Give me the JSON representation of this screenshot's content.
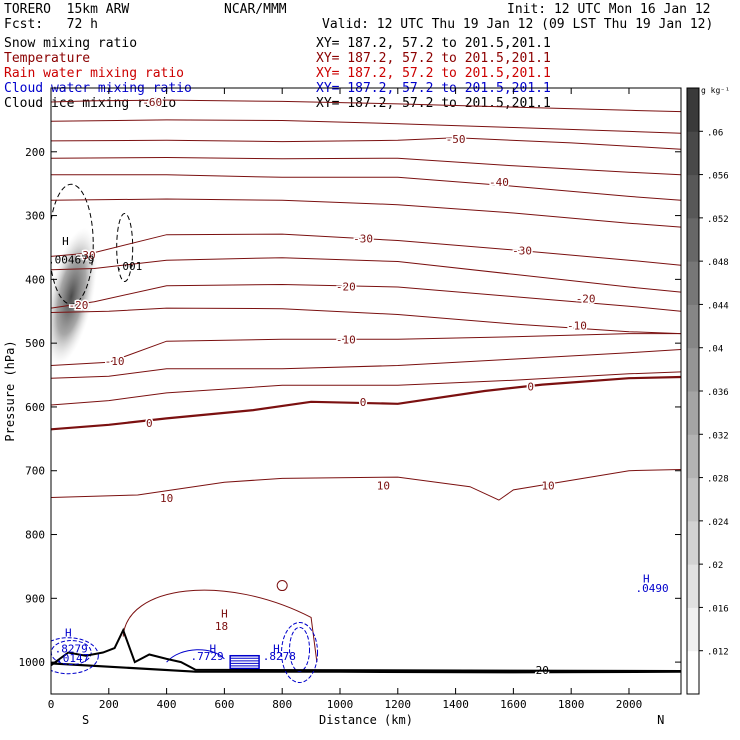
{
  "header": {
    "model": "TORERO  15km ARW",
    "center": "NCAR/MMM",
    "init": "Init: 12 UTC Mon 16 Jan 12",
    "fcst": "Fcst:   72 h",
    "valid": "Valid: 12 UTC Thu 19 Jan 12 (09 LST Thu 19 Jan 12)",
    "fields": [
      {
        "label": "Snow mixing ratio",
        "color": "#000000"
      },
      {
        "label": "Temperature",
        "color": "#8b0000"
      },
      {
        "label": "Rain water mixing ratio",
        "color": "#cc0000"
      },
      {
        "label": "Cloud water mixing ratio",
        "color": "#0000cc"
      },
      {
        "label": "Cloud ice mixing ratio",
        "color": "#000000"
      }
    ],
    "cross_section": "XY= 187.2, 57.2 to 201.5,201.1"
  },
  "chart_data": {
    "type": "heatmap",
    "xlabel": "Distance (km)",
    "ylabel": "Pressure (hPa)",
    "xlim": [
      0,
      2180
    ],
    "ylim": [
      1050,
      100
    ],
    "x_ticks": [
      0,
      200,
      400,
      600,
      800,
      1000,
      1200,
      1400,
      1600,
      1800,
      2000
    ],
    "y_ticks": [
      200,
      300,
      400,
      500,
      600,
      700,
      800,
      900,
      1000
    ],
    "x_end_labels": {
      "left": "S",
      "right": "N"
    },
    "colorbar": {
      "unit": "g kg⁻¹",
      "ticks": [
        0.012,
        0.016,
        0.02,
        0.024,
        0.028,
        0.032,
        0.036,
        0.04,
        0.044,
        0.048,
        0.052,
        0.056,
        0.06
      ],
      "tick_labels": [
        ".012",
        ".016",
        ".02",
        ".024",
        ".028",
        ".032",
        ".036",
        ".04",
        ".044",
        ".048",
        ".052",
        ".056",
        ".06"
      ]
    },
    "temperature_contours": [
      {
        "value": -60,
        "points": [
          [
            0,
            122
          ],
          [
            150,
            120
          ],
          [
            400,
            119
          ],
          [
            800,
            121
          ],
          [
            1200,
            125
          ],
          [
            1600,
            130
          ],
          [
            2000,
            135
          ],
          [
            2180,
            137
          ]
        ],
        "labels": [
          {
            "text": "-60",
            "x": 350,
            "p": 122
          }
        ]
      },
      {
        "value": -55,
        "points": [
          [
            0,
            152
          ],
          [
            400,
            150
          ],
          [
            800,
            151
          ],
          [
            1200,
            156
          ],
          [
            1600,
            162
          ],
          [
            2000,
            168
          ],
          [
            2180,
            171
          ]
        ]
      },
      {
        "value": -50,
        "points": [
          [
            0,
            183
          ],
          [
            400,
            182
          ],
          [
            800,
            184
          ],
          [
            1200,
            182
          ],
          [
            1400,
            178
          ],
          [
            1800,
            186
          ],
          [
            2180,
            196
          ]
        ],
        "labels": [
          {
            "text": "-50",
            "x": 1400,
            "p": 180
          }
        ]
      },
      {
        "value": -45,
        "points": [
          [
            0,
            210
          ],
          [
            400,
            209
          ],
          [
            800,
            211
          ],
          [
            1200,
            210
          ],
          [
            1600,
            222
          ],
          [
            2000,
            232
          ],
          [
            2180,
            236
          ]
        ]
      },
      {
        "value": -40,
        "points": [
          [
            0,
            236
          ],
          [
            400,
            236
          ],
          [
            800,
            240
          ],
          [
            1200,
            240
          ],
          [
            1600,
            254
          ],
          [
            2000,
            270
          ],
          [
            2180,
            276
          ]
        ],
        "labels": [
          {
            "text": "-40",
            "x": 1550,
            "p": 247
          }
        ]
      },
      {
        "value": -35,
        "points": [
          [
            0,
            276
          ],
          [
            400,
            274
          ],
          [
            800,
            276
          ],
          [
            1200,
            283
          ],
          [
            1600,
            296
          ],
          [
            2000,
            312
          ],
          [
            2180,
            318
          ]
        ]
      },
      {
        "value": -30,
        "points": [
          [
            0,
            364
          ],
          [
            150,
            358
          ],
          [
            400,
            330
          ],
          [
            800,
            329
          ],
          [
            1200,
            339
          ],
          [
            1600,
            354
          ],
          [
            2000,
            370
          ],
          [
            2180,
            378
          ]
        ],
        "labels": [
          {
            "text": "-30",
            "x": 120,
            "p": 362
          },
          {
            "text": "-30",
            "x": 1080,
            "p": 336
          },
          {
            "text": "-30",
            "x": 1630,
            "p": 355
          }
        ]
      },
      {
        "value": -25,
        "points": [
          [
            0,
            385
          ],
          [
            150,
            383
          ],
          [
            400,
            370
          ],
          [
            800,
            366
          ],
          [
            1200,
            372
          ],
          [
            1600,
            392
          ],
          [
            2000,
            412
          ],
          [
            2180,
            420
          ]
        ]
      },
      {
        "value": -20,
        "points": [
          [
            0,
            445
          ],
          [
            150,
            435
          ],
          [
            400,
            410
          ],
          [
            800,
            408
          ],
          [
            1200,
            412
          ],
          [
            1600,
            427
          ],
          [
            2000,
            442
          ],
          [
            2180,
            450
          ]
        ],
        "labels": [
          {
            "text": "-20",
            "x": 95,
            "p": 440
          },
          {
            "text": "-20",
            "x": 1020,
            "p": 411
          },
          {
            "text": "-20",
            "x": 1850,
            "p": 430
          }
        ]
      },
      {
        "value": -15,
        "points": [
          [
            0,
            452
          ],
          [
            200,
            450
          ],
          [
            400,
            445
          ],
          [
            800,
            446
          ],
          [
            1200,
            455
          ],
          [
            1600,
            470
          ],
          [
            2000,
            482
          ],
          [
            2180,
            485
          ]
        ]
      },
      {
        "value": -10,
        "points": [
          [
            0,
            535
          ],
          [
            200,
            530
          ],
          [
            400,
            497
          ],
          [
            800,
            494
          ],
          [
            1200,
            494
          ],
          [
            1600,
            490
          ],
          [
            2000,
            485
          ],
          [
            2180,
            485
          ]
        ],
        "labels": [
          {
            "text": "-10",
            "x": 220,
            "p": 528
          },
          {
            "text": "-10",
            "x": 1020,
            "p": 494
          },
          {
            "text": "-10",
            "x": 1820,
            "p": 472
          }
        ]
      },
      {
        "value": -5,
        "points": [
          [
            0,
            555
          ],
          [
            200,
            552
          ],
          [
            400,
            540
          ],
          [
            800,
            540
          ],
          [
            1200,
            535
          ],
          [
            1600,
            525
          ],
          [
            2000,
            515
          ],
          [
            2180,
            510
          ]
        ]
      },
      {
        "value": 0,
        "bold": true,
        "points": [
          [
            0,
            635
          ],
          [
            200,
            628
          ],
          [
            400,
            618
          ],
          [
            700,
            605
          ],
          [
            900,
            592
          ],
          [
            1200,
            595
          ],
          [
            1500,
            575
          ],
          [
            1700,
            565
          ],
          [
            2000,
            555
          ],
          [
            2180,
            553
          ]
        ],
        "labels": [
          {
            "text": "0",
            "x": 340,
            "p": 625
          },
          {
            "text": "0",
            "x": 1080,
            "p": 592
          },
          {
            "text": "0",
            "x": 1660,
            "p": 568
          }
        ]
      },
      {
        "value": 0,
        "points": [
          [
            0,
            597
          ],
          [
            200,
            590
          ],
          [
            400,
            578
          ],
          [
            800,
            566
          ],
          [
            1200,
            566
          ],
          [
            1600,
            558
          ],
          [
            2000,
            548
          ],
          [
            2180,
            545
          ]
        ]
      },
      {
        "value": 10,
        "points": [
          [
            0,
            742
          ],
          [
            300,
            738
          ],
          [
            600,
            718
          ],
          [
            800,
            712
          ],
          [
            1200,
            710
          ],
          [
            1450,
            725
          ],
          [
            1550,
            746
          ],
          [
            1600,
            730
          ],
          [
            2000,
            700
          ],
          [
            2180,
            698
          ]
        ],
        "labels": [
          {
            "text": "10",
            "x": 400,
            "p": 743
          },
          {
            "text": "10",
            "x": 1150,
            "p": 723
          },
          {
            "text": "10",
            "x": 1720,
            "p": 723
          }
        ]
      },
      {
        "value": 20,
        "bold": true,
        "points": [
          [
            0,
            1002
          ],
          [
            500,
            1015
          ],
          [
            1000,
            1015
          ],
          [
            1600,
            1016
          ],
          [
            2180,
            1015
          ]
        ],
        "labels": [
          {
            "text": "20",
            "x": 1700,
            "p": 1012
          }
        ]
      }
    ],
    "terrain": [
      [
        0,
        1005
      ],
      [
        60,
        985
      ],
      [
        120,
        990
      ],
      [
        180,
        985
      ],
      [
        220,
        978
      ],
      [
        250,
        950
      ],
      [
        290,
        1000
      ],
      [
        340,
        988
      ],
      [
        400,
        995
      ],
      [
        450,
        1000
      ],
      [
        500,
        1012
      ],
      [
        2180,
        1014
      ]
    ],
    "snow_max": {
      "x": 70,
      "p": 380,
      "value": ".004679"
    },
    "ice_labels": [
      {
        "text": "H",
        "x": 50,
        "p": 346
      },
      {
        "text": ".004679",
        "x": 70,
        "p": 375
      },
      {
        "text": ".001",
        "x": 270,
        "p": 385
      }
    ],
    "rain_labels": [
      {
        "text": "H",
        "x": 600,
        "p": 930
      },
      {
        "text": "18",
        "x": 590,
        "p": 950
      }
    ],
    "cloud_labels": [
      {
        "text": "H",
        "x": 60,
        "p": 960
      },
      {
        "text": ".8279",
        "x": 70,
        "p": 985
      },
      {
        "text": ".0147",
        "x": 75,
        "p": 1000
      },
      {
        "text": "H",
        "x": 560,
        "p": 985
      },
      {
        "text": ".7729",
        "x": 540,
        "p": 997
      },
      {
        "text": "H",
        "x": 780,
        "p": 985
      },
      {
        "text": ".8278",
        "x": 790,
        "p": 997
      },
      {
        "text": "H",
        "x": 2060,
        "p": 875
      },
      {
        "text": ".0490",
        "x": 2080,
        "p": 890
      }
    ]
  }
}
